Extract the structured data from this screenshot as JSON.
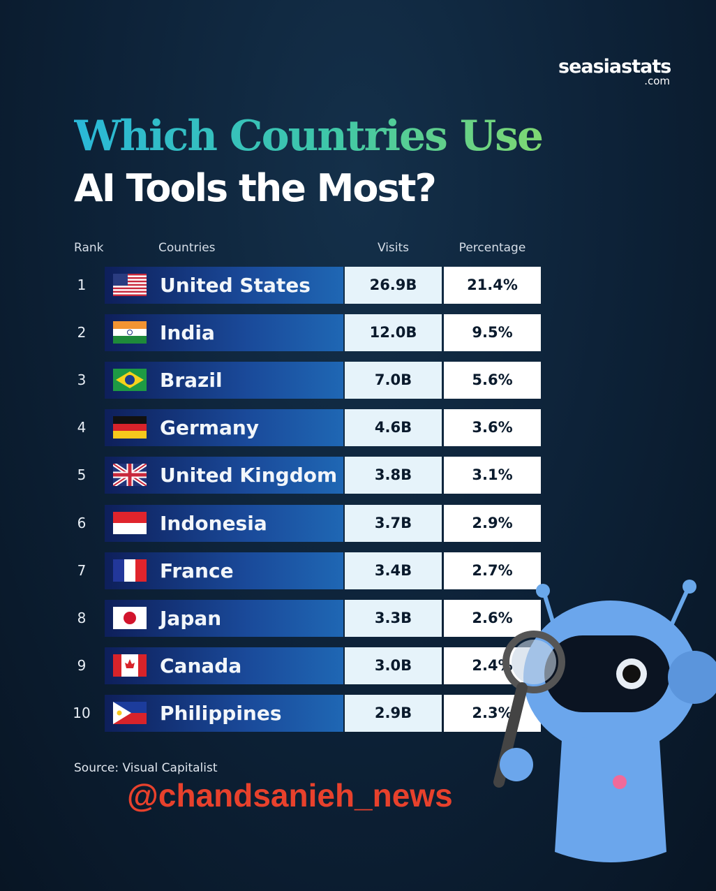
{
  "brand": {
    "name": "seasiastats",
    "suffix": ".com"
  },
  "title": {
    "line1": "Which Countries Use",
    "line2": "AI Tools the Most?"
  },
  "table": {
    "columns": [
      "Rank",
      "Countries",
      "Visits",
      "Percentage"
    ],
    "rows": [
      [
        1,
        "United States",
        "26.9B",
        "21.4%"
      ],
      [
        2,
        "India",
        "12.0B",
        "9.5%"
      ],
      [
        3,
        "Brazil",
        "7.0B",
        "5.6%"
      ],
      [
        4,
        "Germany",
        "4.6B",
        "3.6%"
      ],
      [
        5,
        "United Kingdom",
        "3.8B",
        "3.1%"
      ],
      [
        6,
        "Indonesia",
        "3.7B",
        "2.9%"
      ],
      [
        7,
        "France",
        "3.4B",
        "2.7%"
      ],
      [
        8,
        "Japan",
        "3.3B",
        "2.6%"
      ],
      [
        9,
        "Canada",
        "3.0B",
        "2.4%"
      ],
      [
        10,
        "Philippines",
        "2.9B",
        "2.3%"
      ]
    ]
  },
  "source": "Source: Visual Capitalist",
  "watermark": "@chandsanieh_news"
}
